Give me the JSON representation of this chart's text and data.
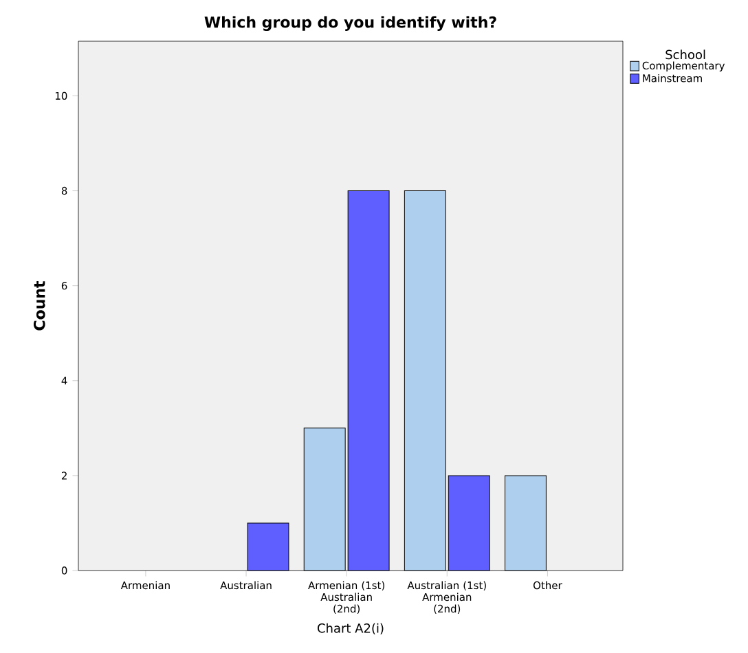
{
  "chart_data": {
    "type": "bar",
    "title": "Which group do you identify with?",
    "xlabel": "Chart A2(i)",
    "ylabel": "Count",
    "legend_title": "School",
    "categories": [
      "Armenian",
      "Australian",
      "Armenian (1st) Australian (2nd)",
      "Australian (1st) Armenian (2nd)",
      "Other"
    ],
    "series": [
      {
        "name": "Complementary",
        "color": "#aecfee",
        "values": [
          null,
          null,
          3,
          8,
          2
        ]
      },
      {
        "name": "Mainstream",
        "color": "#5e5ffe",
        "values": [
          null,
          1,
          8,
          2,
          null
        ]
      }
    ],
    "ylim": [
      0,
      11.15
    ],
    "yticks": [
      0,
      2,
      4,
      6,
      8,
      10
    ],
    "grid": false,
    "legend": "top right"
  }
}
